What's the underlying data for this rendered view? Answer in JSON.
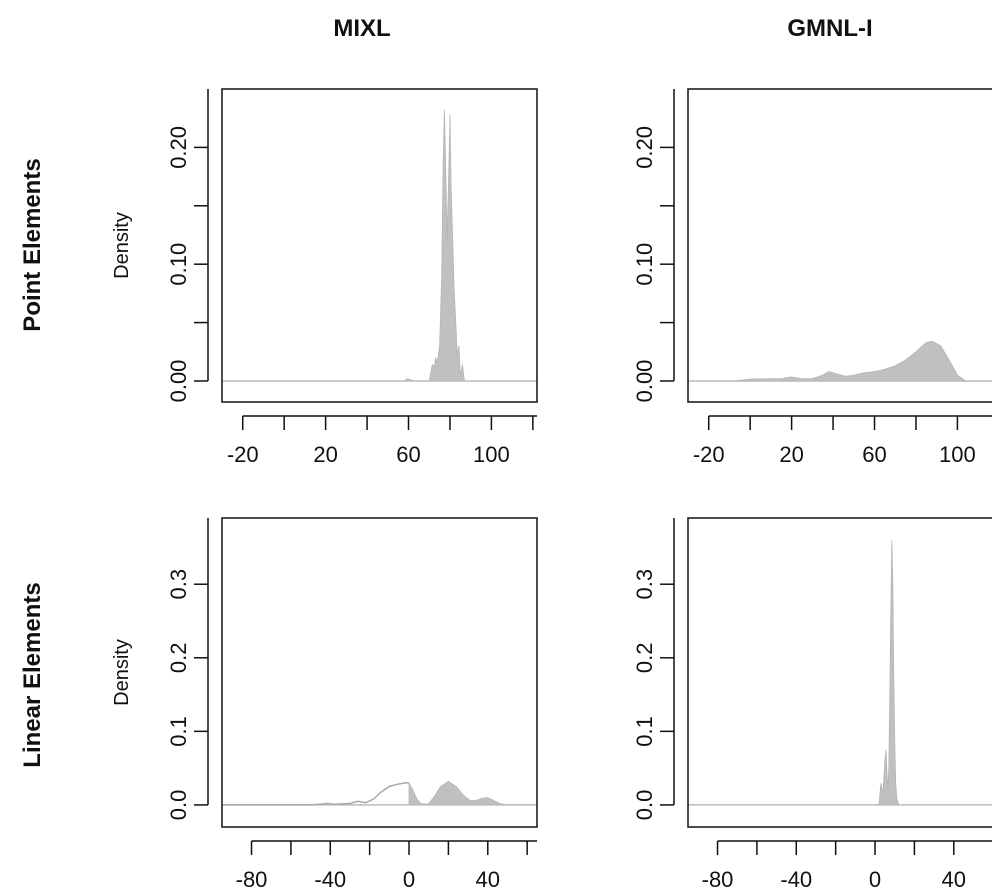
{
  "figure": {
    "column_titles": [
      "MIXL",
      "GMNL-I"
    ],
    "row_titles": [
      "Point Elements",
      "Linear Elements"
    ]
  },
  "chart_data": [
    {
      "type": "area",
      "panel": "MIXL / Point Elements",
      "ylabel": "Density",
      "xlim": [
        -30,
        122
      ],
      "ylim": [
        -0.018,
        0.25
      ],
      "xticks": [
        -20,
        0,
        20,
        40,
        60,
        80,
        100,
        120
      ],
      "xtick_labels": [
        "-20",
        "20",
        "60",
        "100"
      ],
      "xtick_label_values": [
        -20,
        20,
        60,
        100
      ],
      "yticks": [
        0,
        0.05,
        0.1,
        0.15,
        0.2
      ],
      "ytick_labels": [
        "0.00",
        "0.10",
        "0.20"
      ],
      "ytick_label_values": [
        0,
        0.1,
        0.2
      ],
      "box": true,
      "series": [
        {
          "style": "filled",
          "x": [
            58,
            59.5,
            61,
            62.5,
            70,
            71.5,
            72.5,
            73,
            73.8,
            75,
            76,
            76.7,
            77.3,
            78,
            78.6,
            79.3,
            80,
            80.5,
            81.3,
            82,
            82.8,
            83.5,
            84.3,
            85,
            86,
            87
          ],
          "y": [
            0,
            0.002,
            0.001,
            0,
            0,
            0.014,
            0.012,
            0.02,
            0.016,
            0.03,
            0.09,
            0.185,
            0.232,
            0.18,
            0.12,
            0.17,
            0.228,
            0.17,
            0.12,
            0.08,
            0.05,
            0.022,
            0.03,
            0.005,
            0.014,
            0
          ]
        }
      ]
    },
    {
      "type": "area",
      "panel": "GMNL-I / Point Elements",
      "xlim": [
        -30,
        122
      ],
      "ylim": [
        -0.018,
        0.25
      ],
      "xticks": [
        -20,
        0,
        20,
        40,
        60,
        80,
        100,
        120
      ],
      "xtick_labels": [
        "-20",
        "20",
        "60",
        "100"
      ],
      "xtick_label_values": [
        -20,
        20,
        60,
        100
      ],
      "yticks": [
        0,
        0.05,
        0.1,
        0.15,
        0.2
      ],
      "ytick_labels": [
        "0.00",
        "0.10",
        "0.20"
      ],
      "ytick_label_values": [
        0,
        0.1,
        0.2
      ],
      "box": true,
      "series": [
        {
          "style": "filled",
          "x": [
            -8,
            0,
            10,
            15,
            20,
            25,
            30,
            35,
            38,
            42,
            46,
            50,
            55,
            60,
            65,
            70,
            75,
            80,
            85,
            88,
            92,
            96,
            100,
            104
          ],
          "y": [
            0,
            0.0015,
            0.002,
            0.002,
            0.0035,
            0.002,
            0.002,
            0.005,
            0.008,
            0.006,
            0.004,
            0.005,
            0.007,
            0.008,
            0.01,
            0.013,
            0.018,
            0.025,
            0.033,
            0.034,
            0.03,
            0.018,
            0.005,
            0
          ]
        }
      ]
    },
    {
      "type": "area",
      "panel": "MIXL / Linear Elements",
      "ylabel": "Density",
      "xlim": [
        -95,
        65
      ],
      "ylim": [
        -0.03,
        0.39
      ],
      "xticks": [
        -80,
        -60,
        -40,
        -20,
        0,
        20,
        40,
        60
      ],
      "xtick_labels": [
        "-80",
        "-40",
        "0",
        "40"
      ],
      "xtick_label_values": [
        -80,
        -40,
        0,
        40
      ],
      "yticks": [
        0,
        0.1,
        0.2,
        0.3
      ],
      "ytick_labels": [
        "0.0",
        "0.1",
        "0.2",
        "0.3"
      ],
      "ytick_label_values": [
        0,
        0.1,
        0.2,
        0.3
      ],
      "box": true,
      "series": [
        {
          "style": "outline",
          "x": [
            -95,
            -50,
            -45,
            -42,
            -38,
            -30,
            -26,
            -22,
            -18,
            -14,
            -10,
            -6,
            -2,
            0
          ],
          "y": [
            0,
            0,
            0.001,
            0.002,
            0.001,
            0.002,
            0.005,
            0.003,
            0.008,
            0.018,
            0.025,
            0.028,
            0.03,
            0.03
          ]
        },
        {
          "style": "filled",
          "x": [
            0,
            2,
            4,
            6,
            8,
            10,
            13,
            16,
            20,
            24,
            28,
            31,
            34,
            37,
            40,
            43,
            46,
            50,
            65
          ],
          "y": [
            0.03,
            0.02,
            0.008,
            0.002,
            0.001,
            0.002,
            0.012,
            0.025,
            0.032,
            0.025,
            0.012,
            0.006,
            0.006,
            0.009,
            0.01,
            0.006,
            0.002,
            0,
            0
          ]
        }
      ]
    },
    {
      "type": "area",
      "panel": "GMNL-I / Linear Elements",
      "xlim": [
        -95,
        65
      ],
      "ylim": [
        -0.03,
        0.39
      ],
      "xticks": [
        -80,
        -60,
        -40,
        -20,
        0,
        20,
        40,
        60
      ],
      "xtick_labels": [
        "-80",
        "-40",
        "0",
        "40"
      ],
      "xtick_label_values": [
        -80,
        -40,
        0,
        40
      ],
      "yticks": [
        0,
        0.1,
        0.2,
        0.3
      ],
      "ytick_labels": [
        "0.0",
        "0.1",
        "0.2",
        "0.3"
      ],
      "ytick_label_values": [
        0,
        0.1,
        0.2,
        0.3
      ],
      "box": true,
      "series": [
        {
          "style": "filled",
          "x": [
            2,
            3,
            4,
            5,
            5.5,
            6,
            6.5,
            7,
            7.5,
            8,
            8.5,
            9,
            9.5,
            10,
            10.5,
            11,
            12
          ],
          "y": [
            0,
            0.03,
            0.015,
            0.06,
            0.075,
            0.05,
            0.02,
            0.05,
            0.15,
            0.26,
            0.36,
            0.3,
            0.18,
            0.09,
            0.03,
            0.01,
            0
          ]
        }
      ]
    }
  ]
}
